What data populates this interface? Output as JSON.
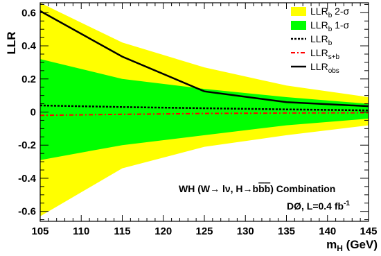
{
  "chart_data": {
    "type": "area",
    "xlabel": {
      "main": "m",
      "sub": "H",
      "unit": " (GeV)"
    },
    "ylabel": "LLR",
    "xlim": [
      105,
      145
    ],
    "ylim": [
      -0.66,
      0.66
    ],
    "x_ticks": [
      105,
      110,
      115,
      120,
      125,
      130,
      135,
      140,
      145
    ],
    "y_ticks": [
      -0.6,
      -0.4,
      -0.2,
      0,
      0.2,
      0.4,
      0.6
    ],
    "x_tick_labels": [
      "105",
      "110",
      "115",
      "120",
      "125",
      "130",
      "135",
      "140",
      "145"
    ],
    "y_tick_labels": [
      "-0.6",
      "-0.4",
      "-0.2",
      "0",
      "0.2",
      "0.4",
      "0.6"
    ],
    "x": [
      105,
      115,
      125,
      135,
      145
    ],
    "series": [
      {
        "key": "band2_upper",
        "values": [
          0.66,
          0.42,
          0.27,
          0.16,
          0.09
        ]
      },
      {
        "key": "band2_lower",
        "values": [
          -0.63,
          -0.34,
          -0.21,
          -0.14,
          -0.08
        ]
      },
      {
        "key": "band1_upper",
        "values": [
          0.32,
          0.2,
          0.14,
          0.09,
          0.05
        ]
      },
      {
        "key": "band1_lower",
        "values": [
          -0.29,
          -0.2,
          -0.14,
          -0.08,
          -0.04
        ]
      },
      {
        "key": "llr_b",
        "values": [
          0.04,
          0.03,
          0.023,
          0.016,
          0.01
        ]
      },
      {
        "key": "llr_sb",
        "values": [
          -0.02,
          -0.014,
          -0.009,
          -0.006,
          -0.004
        ]
      },
      {
        "key": "llr_obs",
        "values": [
          0.61,
          0.335,
          0.125,
          0.06,
          0.035
        ]
      }
    ],
    "legend": {
      "position": "top-right",
      "entries": [
        {
          "text": "LLR",
          "sub": "b",
          "suffix": " 2-σ",
          "color": "#ffff00",
          "style": "fill"
        },
        {
          "text": "LLR",
          "sub": "b",
          "suffix": " 1-σ",
          "color": "#00ff00",
          "style": "fill"
        },
        {
          "text": "LLR",
          "sub": "b",
          "suffix": "",
          "color": "#000000",
          "style": "dotted"
        },
        {
          "text": "LLR",
          "sub": "s+b",
          "suffix": "",
          "color": "#ff0000",
          "style": "dashdot"
        },
        {
          "text": "LLR",
          "sub": "obs",
          "suffix": "",
          "color": "#000000",
          "style": "solid"
        }
      ]
    },
    "annotations": {
      "process": "WH (W→ lν, H→b",
      "bbar": "b",
      "bbar2": "b",
      "process_end": ") Combination",
      "experiment": "DØ, L=0.4 fb",
      "experiment_sup": "-1"
    },
    "grid": false
  }
}
